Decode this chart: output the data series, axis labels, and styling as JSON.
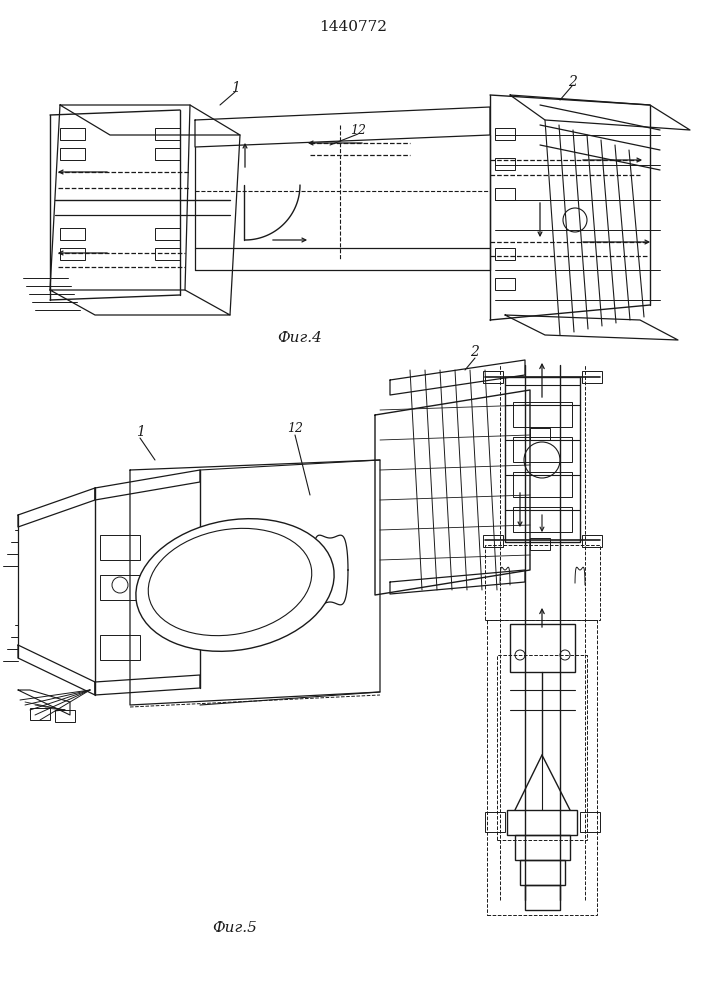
{
  "title": "1440772",
  "fig4_label": "Фиг.4",
  "fig5_label": "Фиг.5",
  "background_color": "#ffffff",
  "lc": "#1a1a1a",
  "title_fontsize": 11,
  "label_fontsize": 10,
  "fig_width": 7.07,
  "fig_height": 10.0
}
